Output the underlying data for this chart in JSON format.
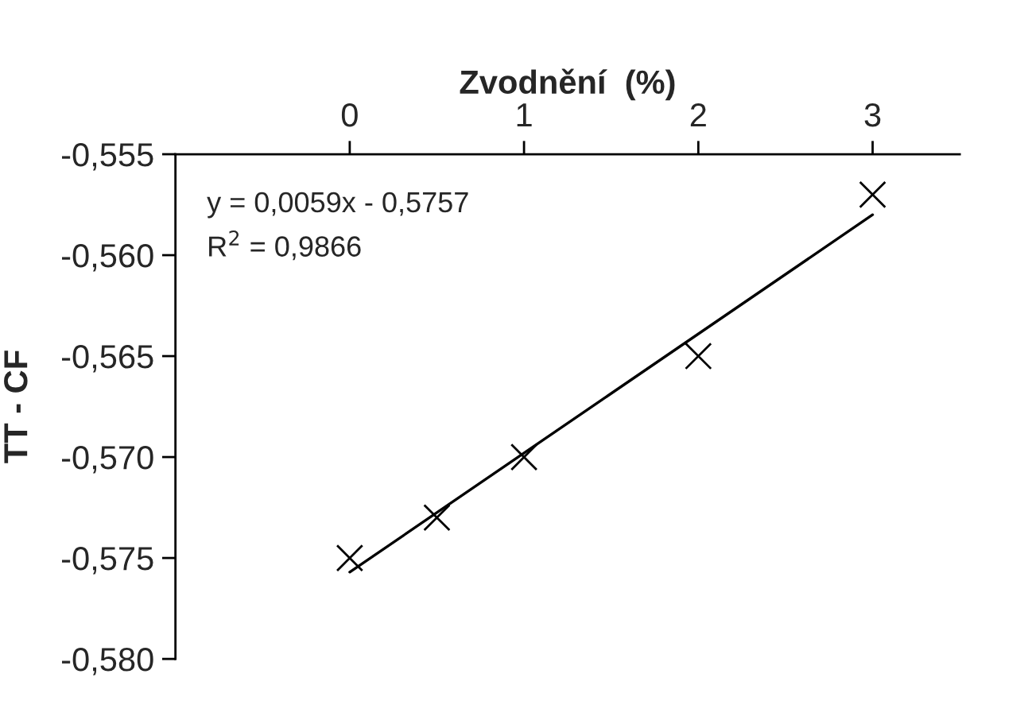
{
  "chart_data": {
    "type": "scatter",
    "xlabel": "Zvodnění  (%)",
    "ylabel": "TT - CF",
    "xlim": [
      -1,
      3.5
    ],
    "xticks": [
      0,
      1,
      2,
      3
    ],
    "ylim": [
      -0.58,
      -0.555
    ],
    "yticks": [
      {
        "value": -0.555,
        "label": "-0,555"
      },
      {
        "value": -0.56,
        "label": "-0,560"
      },
      {
        "value": -0.565,
        "label": "-0,565"
      },
      {
        "value": -0.57,
        "label": "-0,570"
      },
      {
        "value": -0.575,
        "label": "-0,575"
      },
      {
        "value": -0.58,
        "label": "-0,580"
      }
    ],
    "series": [
      {
        "color": "#000000",
        "marker": "cross",
        "x": [
          0,
          0.5,
          1,
          2,
          3
        ],
        "values": [
          -0.575,
          -0.573,
          -0.57,
          -0.565,
          -0.557
        ]
      },
      {
        "type": "line",
        "color": "#000000",
        "marker": "none",
        "line_style": "solid",
        "x": [
          0,
          3
        ],
        "values": [
          -0.5757,
          -0.558
        ]
      }
    ],
    "annotations": [
      "y = 0,0059x - 0,5757",
      "R$^{2}$ = 0,9866"
    ],
    "grid": false,
    "legend": false
  }
}
